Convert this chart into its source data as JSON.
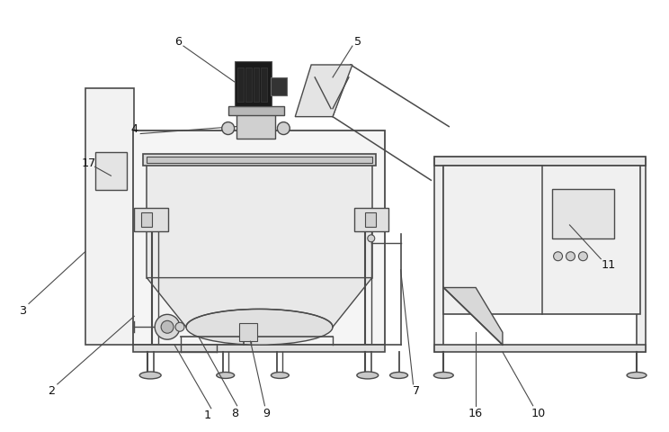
{
  "bg_color": "#ffffff",
  "lc": "#4a4a4a",
  "lc2": "#333333",
  "fill_panel": "#f0f0f0",
  "fill_tank": "#ececec",
  "fill_motor": "#222222",
  "fill_light": "#e0e0e0",
  "fill_mid": "#cccccc"
}
